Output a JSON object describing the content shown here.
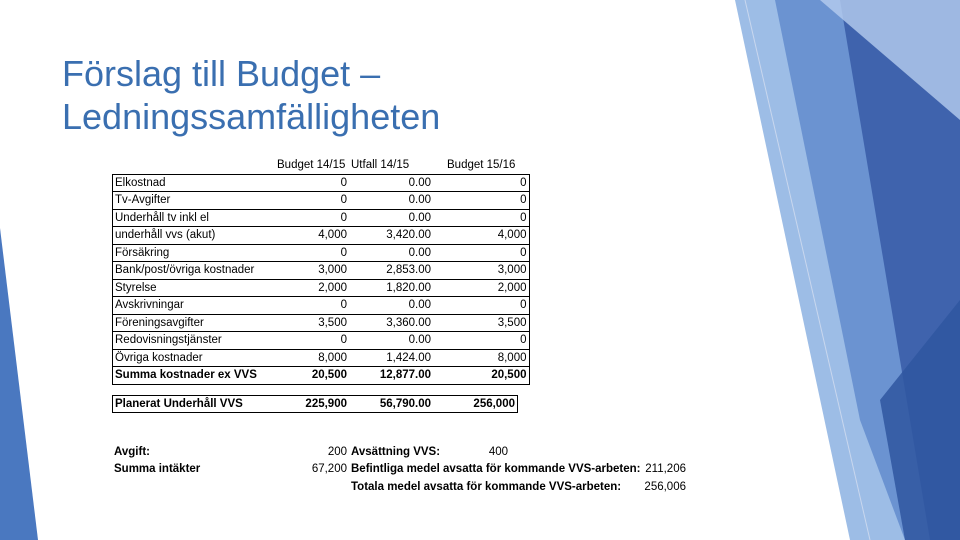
{
  "title": {
    "line1": "Förslag till Budget –",
    "line2": "Ledningssamfälligheten"
  },
  "budget_table": {
    "headers": [
      "",
      "Budget 14/15",
      "Utfall 14/15",
      "Budget 15/16"
    ],
    "rows": [
      [
        "Elkostnad",
        "0",
        "0.00",
        "0"
      ],
      [
        "Tv-Avgifter",
        "0",
        "0.00",
        "0"
      ],
      [
        "Underhåll tv inkl el",
        "0",
        "0.00",
        "0"
      ],
      [
        "underhåll vvs (akut)",
        "4,000",
        "3,420.00",
        "4,000"
      ],
      [
        "Försäkring",
        "0",
        "0.00",
        "0"
      ],
      [
        "Bank/post/övriga kostnader",
        "3,000",
        "2,853.00",
        "3,000"
      ],
      [
        "Styrelse",
        "2,000",
        "1,820.00",
        "2,000"
      ],
      [
        "Avskrivningar",
        "0",
        "0.00",
        "0"
      ],
      [
        "Föreningsavgifter",
        "3,500",
        "3,360.00",
        "3,500"
      ],
      [
        "Redovisningstjänster",
        "0",
        "0.00",
        "0"
      ],
      [
        "Övriga kostnader",
        "8,000",
        "1,424.00",
        "8,000"
      ]
    ],
    "sum_row": [
      "Summa kostnader ex VVS",
      "20,500",
      "12,877.00",
      "20,500"
    ]
  },
  "planned_row": [
    "Planerat Underhåll VVS",
    "225,900",
    "56,790.00",
    "256,000"
  ],
  "footer": {
    "avgift_label": "Avgift:",
    "avgift_value": "200",
    "avsattning_label": "Avsättning VVS:",
    "avsattning_value": "400",
    "intakter_label": "Summa intäkter",
    "intakter_value": "67,200",
    "befintliga_label": "Befintliga medel avsatta för kommande VVS-arbeten:",
    "befintliga_value": "211,206",
    "totala_label": "Totala medel avsatta för kommande VVS-arbeten:",
    "totala_value": "256,006"
  },
  "colors": {
    "title": "#3a6fb0",
    "deco_dark": "#3f63ad",
    "deco_mid": "#5b85c9",
    "deco_light": "#8fb3e3"
  }
}
